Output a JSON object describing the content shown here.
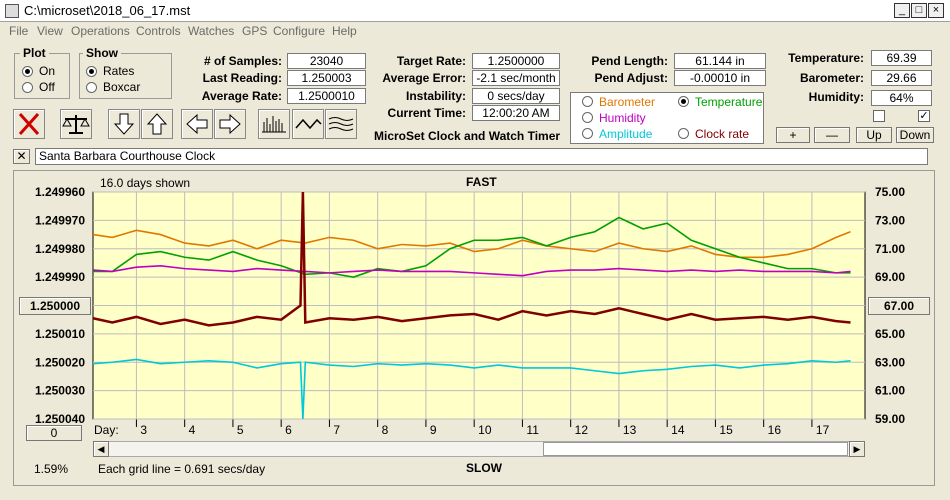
{
  "window": {
    "title": "C:\\microset\\2018_06_17.mst"
  },
  "menu": [
    "File",
    "View",
    "Operations",
    "Controls",
    "Watches",
    "GPS",
    "Configure",
    "Help"
  ],
  "plot": {
    "label": "Plot",
    "on": "On",
    "off": "Off",
    "selected": "On"
  },
  "show": {
    "label": "Show",
    "rates": "Rates",
    "boxcar": "Boxcar",
    "selected": "Rates"
  },
  "stats": {
    "samples_label": "# of Samples:",
    "samples": "23040",
    "last_label": "Last Reading:",
    "last": "1.250003",
    "avg_label": "Average Rate:",
    "avg": "1.2500010",
    "target_label": "Target Rate:",
    "target": "1.2500000",
    "avgerr_label": "Average Error:",
    "avgerr": "-2.1 sec/month",
    "inst_label": "Instability:",
    "inst": "0 secs/day",
    "time_label": "Current Time:",
    "time": "12:00:20 AM",
    "pendlen_label": "Pend Length:",
    "pendlen": "61.144 in",
    "pendadj_label": "Pend Adjust:",
    "pendadj": "-0.00010 in",
    "temp_label": "Temperature:",
    "temp": "69.39",
    "baro_label": "Barometer:",
    "baro": "29.66",
    "hum_label": "Humidity:",
    "hum": "64%"
  },
  "app_caption": "MicroSet Clock and Watch Timer",
  "secondary": {
    "barometer": "Barometer",
    "temperature": "Temperature",
    "humidity": "Humidity",
    "amplitude": "Amplitude",
    "clock_rate": "Clock rate",
    "selected": "Temperature",
    "colors": {
      "barometer": "#e07800",
      "temperature": "#00a000",
      "humidity": "#c000c0",
      "amplitude": "#00c8d8",
      "clock_rate": "#800000"
    }
  },
  "buttons": {
    "plus": "+",
    "minus": "—",
    "up": "Up",
    "down": "Down",
    "zero": "0"
  },
  "clock_name": "Santa Barbara Courthouse Clock",
  "chart_info": {
    "days_shown": "16.0 days shown",
    "fast": "FAST",
    "slow": "SLOW",
    "grid_note": "Each grid line = 0.691 secs/day",
    "percent": "1.59%",
    "day_label": "Day:",
    "center_left": "1.250000",
    "center_right": "67.00"
  },
  "chart_data": {
    "type": "line",
    "x_label": "Day",
    "xlim": [
      2.1,
      18.1
    ],
    "x_ticks": [
      "3",
      "4",
      "5",
      "6",
      "7",
      "8",
      "9",
      "10",
      "11",
      "12",
      "13",
      "14",
      "15",
      "16",
      "17"
    ],
    "left_axis": {
      "ticks": [
        "1.249960",
        "1.249970",
        "1.249980",
        "1.249990",
        "1.250000",
        "1.250010",
        "1.250020",
        "1.250030",
        "1.250040"
      ],
      "lim": [
        1.24996,
        1.25004
      ],
      "reversed": true
    },
    "right_axis": {
      "ticks": [
        "75.00",
        "73.00",
        "71.00",
        "69.00",
        "67.00",
        "65.00",
        "63.00",
        "61.00",
        "59.00"
      ],
      "lim": [
        59,
        75
      ]
    },
    "series": [
      {
        "name": "Barometer",
        "color": "#e07800",
        "x": [
          2.1,
          2.5,
          3.0,
          3.5,
          4.0,
          4.5,
          5.0,
          5.5,
          6.0,
          6.5,
          7.0,
          7.5,
          8.0,
          8.5,
          9.0,
          9.5,
          10.0,
          10.5,
          11.0,
          11.5,
          12.0,
          12.5,
          13.0,
          13.5,
          14.0,
          14.5,
          15.0,
          15.5,
          16.0,
          16.5,
          17.0,
          17.5,
          17.8
        ],
        "y": [
          72.0,
          71.8,
          72.3,
          72.0,
          71.4,
          71.2,
          71.6,
          71.0,
          71.6,
          71.4,
          71.8,
          71.6,
          71.0,
          71.3,
          71.2,
          71.4,
          70.8,
          71.0,
          71.6,
          71.2,
          71.0,
          70.8,
          71.4,
          71.0,
          70.8,
          71.2,
          70.6,
          70.4,
          70.4,
          70.6,
          71.0,
          71.8,
          72.2
        ]
      },
      {
        "name": "Temperature",
        "color": "#00a000",
        "x": [
          2.1,
          2.5,
          3.0,
          3.5,
          4.0,
          4.5,
          5.0,
          5.5,
          6.0,
          6.5,
          7.0,
          7.5,
          8.0,
          8.5,
          9.0,
          9.5,
          10.0,
          10.5,
          11.0,
          11.5,
          12.0,
          12.5,
          13.0,
          13.5,
          14.0,
          14.5,
          15.0,
          15.5,
          16.0,
          16.5,
          17.0,
          17.5,
          17.8
        ],
        "y": [
          69.4,
          69.4,
          70.6,
          70.8,
          70.4,
          70.2,
          70.8,
          70.2,
          69.8,
          69.2,
          69.3,
          69.0,
          69.6,
          69.4,
          69.8,
          71.0,
          71.6,
          71.6,
          71.8,
          71.2,
          71.8,
          72.2,
          73.2,
          72.4,
          72.8,
          71.6,
          71.0,
          70.4,
          70.0,
          69.6,
          69.6,
          69.3,
          69.3
        ]
      },
      {
        "name": "Humidity",
        "color": "#c000c0",
        "x": [
          2.1,
          2.5,
          3.0,
          3.5,
          4.0,
          4.5,
          5.0,
          5.5,
          6.0,
          6.5,
          7.0,
          7.5,
          8.0,
          8.5,
          9.0,
          9.5,
          10.0,
          10.5,
          11.0,
          11.5,
          12.0,
          12.5,
          13.0,
          13.5,
          14.0,
          14.5,
          15.0,
          15.5,
          16.0,
          16.5,
          17.0,
          17.5,
          17.8
        ],
        "y": [
          69.5,
          69.4,
          69.7,
          69.8,
          69.6,
          69.5,
          69.4,
          69.6,
          69.5,
          69.4,
          69.3,
          69.4,
          69.5,
          69.4,
          69.4,
          69.4,
          69.3,
          69.2,
          69.1,
          69.4,
          69.5,
          69.5,
          69.6,
          69.5,
          69.4,
          69.5,
          69.4,
          69.5,
          69.4,
          69.4,
          69.4,
          69.3,
          69.4
        ]
      },
      {
        "name": "Clock rate",
        "color": "#800000",
        "x": [
          2.1,
          2.5,
          3.0,
          3.5,
          4.0,
          4.5,
          5.0,
          5.5,
          6.0,
          6.4,
          6.45,
          6.5,
          7.0,
          7.5,
          8.0,
          8.5,
          9.0,
          9.5,
          10.0,
          10.5,
          11.0,
          11.5,
          12.0,
          12.5,
          13.0,
          13.5,
          14.0,
          14.5,
          15.0,
          15.5,
          16.0,
          16.5,
          17.0,
          17.5,
          17.8
        ],
        "y": [
          1.2500045,
          1.250006,
          1.250004,
          1.2500065,
          1.250005,
          1.250007,
          1.250006,
          1.250004,
          1.250005,
          1.25,
          1.24996,
          1.250006,
          1.2500045,
          1.250005,
          1.250004,
          1.2500055,
          1.2500045,
          1.2500035,
          1.250003,
          1.250005,
          1.250002,
          1.2500035,
          1.250002,
          1.250003,
          1.250001,
          1.250003,
          1.250005,
          1.250003,
          1.250005,
          1.2500045,
          1.250004,
          1.250005,
          1.250004,
          1.2500055,
          1.250006
        ]
      },
      {
        "name": "Amplitude",
        "color": "#00c8d8",
        "x": [
          2.1,
          2.5,
          3.0,
          3.5,
          4.0,
          4.5,
          5.0,
          5.5,
          6.0,
          6.4,
          6.45,
          6.5,
          7.0,
          7.5,
          8.0,
          8.5,
          9.0,
          9.5,
          10.0,
          10.5,
          11.0,
          11.5,
          12.0,
          12.5,
          13.0,
          13.5,
          14.0,
          14.5,
          15.0,
          15.5,
          16.0,
          16.5,
          17.0,
          17.5,
          17.8
        ],
        "y": [
          62.9,
          63.0,
          63.2,
          62.9,
          63.0,
          63.1,
          63.0,
          62.6,
          62.9,
          63.0,
          59.0,
          63.0,
          62.8,
          62.7,
          62.9,
          62.8,
          62.9,
          62.8,
          62.6,
          62.8,
          62.6,
          62.6,
          62.6,
          62.4,
          62.2,
          62.4,
          62.5,
          62.7,
          62.8,
          62.6,
          62.8,
          62.9,
          63.1,
          63.0,
          63.1
        ]
      }
    ]
  }
}
